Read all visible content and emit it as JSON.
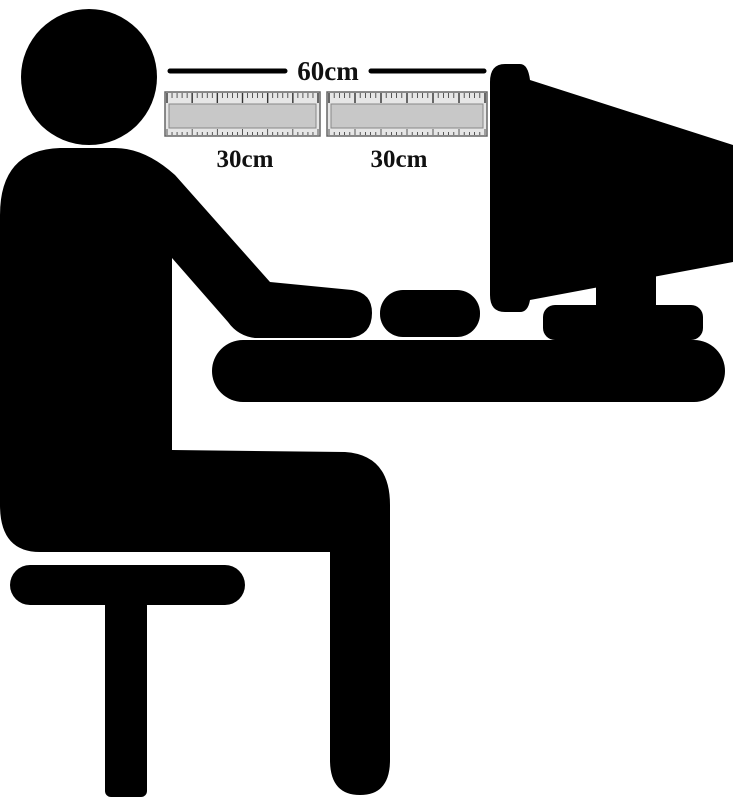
{
  "diagram": {
    "total_distance_label": "60cm",
    "segments": [
      {
        "label": "30cm"
      },
      {
        "label": "30cm"
      }
    ]
  },
  "colors": {
    "silhouette": "#000000",
    "background": "#ffffff",
    "ruler_body": "#cfcfcf",
    "ruler_frame": "#666666"
  }
}
